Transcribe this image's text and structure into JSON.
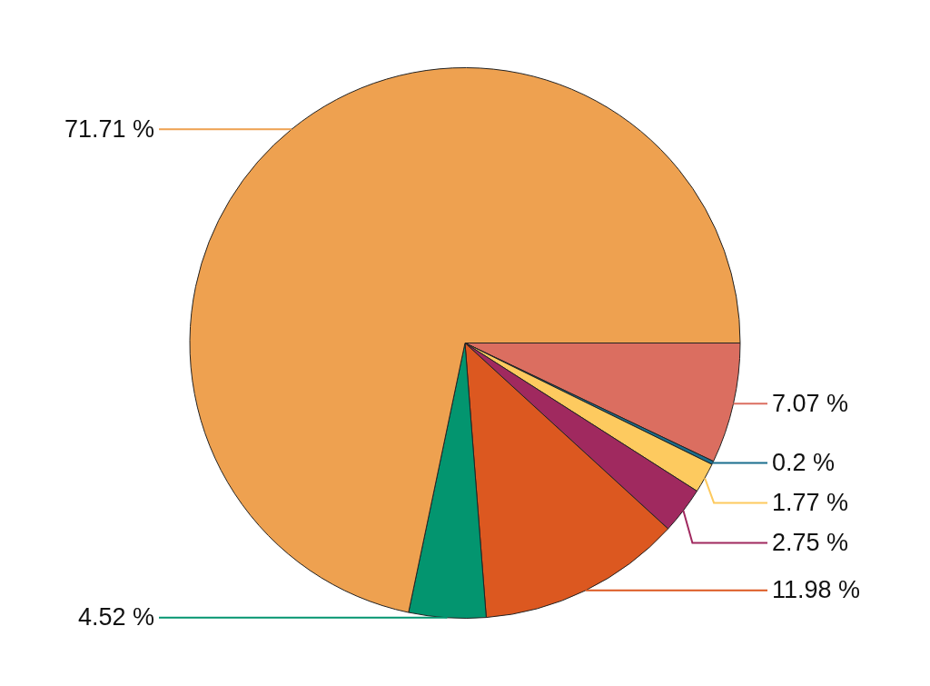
{
  "chart_data": {
    "type": "pie",
    "values": [
      7.07,
      0.2,
      1.77,
      2.75,
      11.98,
      4.52,
      71.71
    ],
    "value_labels": [
      "7.07 %",
      "0.2 %",
      "1.77 %",
      "2.75 %",
      "11.98 %",
      "4.52 %",
      "71.71 %"
    ],
    "colors": [
      "#db6e60",
      "#1a6e8e",
      "#fdca5f",
      "#a0295f",
      "#dc5820",
      "#03956f",
      "#eea150"
    ],
    "data_labels": true
  }
}
